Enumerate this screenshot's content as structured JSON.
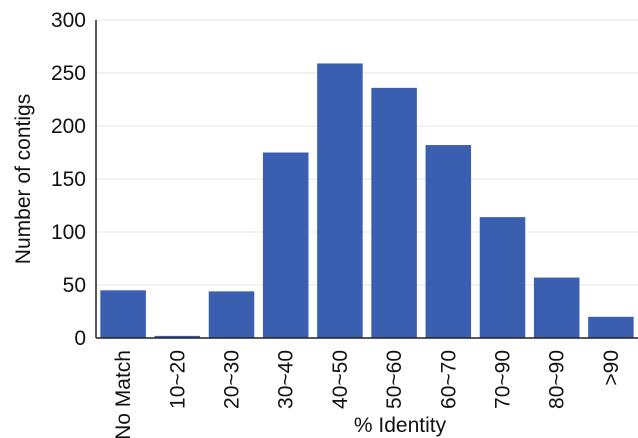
{
  "chart_data": {
    "type": "bar",
    "title": "",
    "xlabel": "% Identity",
    "ylabel": "Number of contigs",
    "categories": [
      "No Match",
      "10~20",
      "20~30",
      "30~40",
      "40~50",
      "50~60",
      "60~70",
      "70~90",
      "80~90",
      ">90"
    ],
    "values": [
      45,
      2,
      44,
      175,
      259,
      236,
      182,
      114,
      57,
      20
    ],
    "ylim": [
      0,
      300
    ],
    "yticks": [
      0,
      50,
      100,
      150,
      200,
      250,
      300
    ],
    "grid": true,
    "legend": "none",
    "bar_color": "#3a5fb0",
    "grid_color": "#e6e6e6",
    "axis_color": "#222222"
  }
}
